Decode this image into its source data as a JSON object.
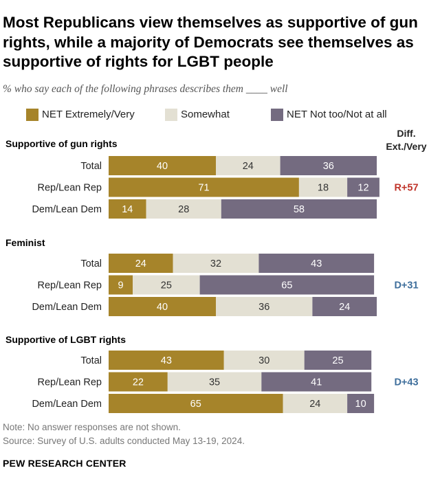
{
  "title": "Most Republicans view themselves as supportive of gun rights, while a majority of Democrats see themselves as supportive of rights for LGBT people",
  "subtitle": "% who say each of the following phrases describes them ____ well",
  "diff_header": "Diff. Ext./Very",
  "note": "Note: No answer responses are not shown.",
  "source": "Source: Survey of U.S. adults conducted May 13-19, 2024.",
  "brand": "PEW RESEARCH CENTER",
  "colors": {
    "extremely": "#a6842a",
    "somewhat": "#e3e0d3",
    "not": "#746b80",
    "rep_diff": "#c0352b",
    "dem_diff": "#3f6f9c"
  },
  "chart_data": {
    "type": "stacked-bar",
    "legend": [
      "NET Extremely/Very",
      "Somewhat",
      "NET Not too/Not at all"
    ],
    "groups": [
      {
        "title": "Supportive of gun rights",
        "diff": "R+57",
        "diff_party": "rep",
        "rows": [
          {
            "label": "Total",
            "values": [
              40,
              24,
              36
            ]
          },
          {
            "label": "Rep/Lean Rep",
            "values": [
              71,
              18,
              12
            ]
          },
          {
            "label": "Dem/Lean Dem",
            "values": [
              14,
              28,
              58
            ]
          }
        ]
      },
      {
        "title": "Feminist",
        "diff": "D+31",
        "diff_party": "dem",
        "rows": [
          {
            "label": "Total",
            "values": [
              24,
              32,
              43
            ]
          },
          {
            "label": "Rep/Lean Rep",
            "values": [
              9,
              25,
              65
            ]
          },
          {
            "label": "Dem/Lean Dem",
            "values": [
              40,
              36,
              24
            ]
          }
        ]
      },
      {
        "title": "Supportive of LGBT rights",
        "diff": "D+43",
        "diff_party": "dem",
        "rows": [
          {
            "label": "Total",
            "values": [
              43,
              30,
              25
            ]
          },
          {
            "label": "Rep/Lean Rep",
            "values": [
              22,
              35,
              41
            ]
          },
          {
            "label": "Dem/Lean Dem",
            "values": [
              65,
              24,
              10
            ]
          }
        ]
      }
    ]
  }
}
